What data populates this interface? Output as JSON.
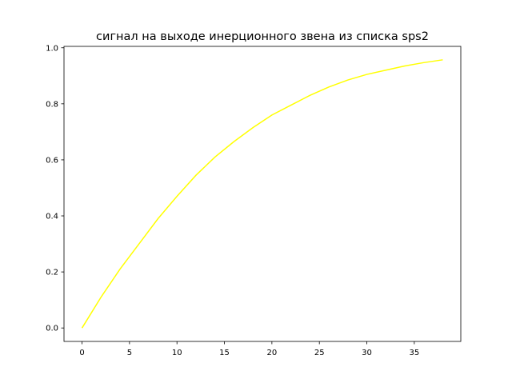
{
  "chart_data": {
    "type": "line",
    "title": "сигнал на выходе инерционного звена из списка sps2",
    "xlabel": "",
    "ylabel": "",
    "xlim": [
      -1.9,
      39.9
    ],
    "ylim": [
      -0.048,
      1.005
    ],
    "xticks": [
      0,
      5,
      10,
      15,
      20,
      25,
      30,
      35
    ],
    "xtick_labels": [
      "0",
      "5",
      "10",
      "15",
      "20",
      "25",
      "30",
      "35"
    ],
    "yticks": [
      0.0,
      0.2,
      0.4,
      0.6,
      0.8,
      1.0
    ],
    "ytick_labels": [
      "0.0",
      "0.2",
      "0.4",
      "0.6",
      "0.8",
      "1.0"
    ],
    "grid": false,
    "series": [
      {
        "color": "#ffff00",
        "x": [
          0,
          2,
          4,
          6,
          8,
          10,
          12,
          14,
          16,
          18,
          20,
          22,
          24,
          26,
          28,
          30,
          32,
          34,
          36,
          38
        ],
        "y": [
          0,
          0.11,
          0.21,
          0.3,
          0.39,
          0.47,
          0.545,
          0.61,
          0.665,
          0.715,
          0.76,
          0.795,
          0.83,
          0.86,
          0.885,
          0.905,
          0.92,
          0.935,
          0.947,
          0.957
        ]
      }
    ]
  }
}
